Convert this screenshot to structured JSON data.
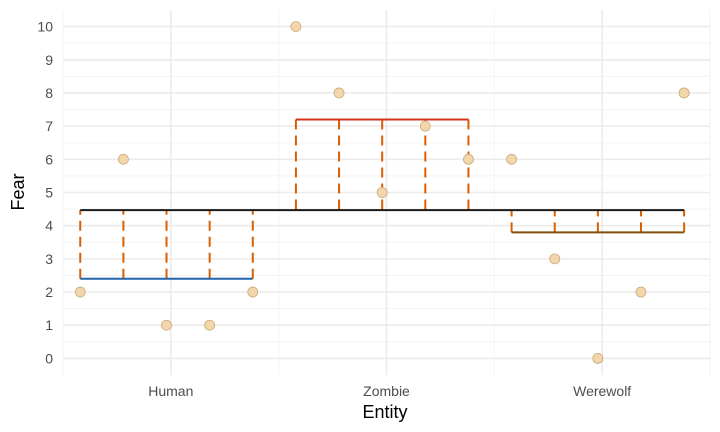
{
  "chart_data": {
    "type": "scatter",
    "title": "",
    "xlabel": "Entity",
    "ylabel": "Fear",
    "categories": [
      "Human",
      "Zombie",
      "Werewolf"
    ],
    "y_ticks": [
      0,
      1,
      2,
      3,
      4,
      5,
      6,
      7,
      8,
      9,
      10
    ],
    "ylim": [
      -0.5,
      10.5
    ],
    "grid": true,
    "grand_mean": 4.47,
    "group_means": [
      {
        "category": "Human",
        "mean": 2.4,
        "color": "#2166ac"
      },
      {
        "category": "Zombie",
        "mean": 7.2,
        "color": "#d7301f"
      },
      {
        "category": "Werewolf",
        "mean": 3.8,
        "color": "#7f4f06"
      }
    ],
    "points": [
      {
        "x": 0.58,
        "y": 2
      },
      {
        "x": 0.78,
        "y": 6
      },
      {
        "x": 0.98,
        "y": 1
      },
      {
        "x": 1.18,
        "y": 1
      },
      {
        "x": 1.38,
        "y": 2
      },
      {
        "x": 1.58,
        "y": 10
      },
      {
        "x": 1.78,
        "y": 8
      },
      {
        "x": 1.98,
        "y": 5
      },
      {
        "x": 2.18,
        "y": 7
      },
      {
        "x": 2.38,
        "y": 6
      },
      {
        "x": 2.58,
        "y": 6
      },
      {
        "x": 2.78,
        "y": 3
      },
      {
        "x": 2.98,
        "y": 0
      },
      {
        "x": 3.18,
        "y": 2
      },
      {
        "x": 3.38,
        "y": 8
      }
    ],
    "colors": {
      "grand_mean_line": "#1a1a1a",
      "deviation_lines": "#d95f02",
      "point_fill": "#f3d7ab",
      "point_stroke": "#c9a97a",
      "grid_major": "#ebebeb",
      "grid_minor": "#f3f3f3"
    }
  }
}
